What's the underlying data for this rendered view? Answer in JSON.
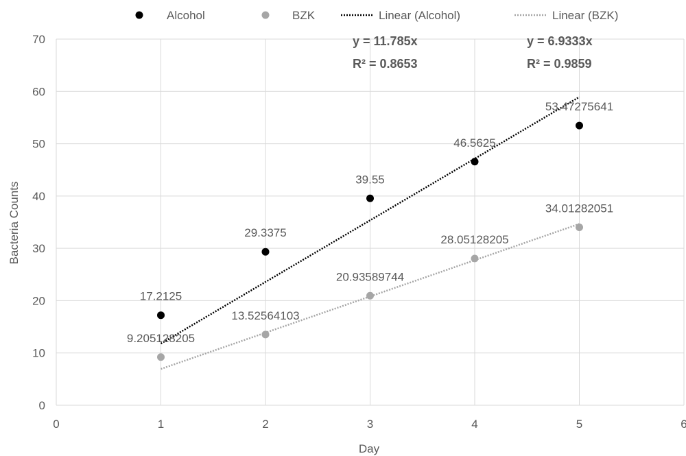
{
  "chart_data": {
    "type": "scatter",
    "title": "",
    "xlabel": "Day",
    "ylabel": "Bacteria Counts",
    "xlim": [
      0,
      6
    ],
    "ylim": [
      0,
      70
    ],
    "x_ticks": [
      0,
      1,
      2,
      3,
      4,
      5,
      6
    ],
    "y_ticks": [
      0,
      10,
      20,
      30,
      40,
      50,
      60,
      70
    ],
    "grid": true,
    "legend_position": "top",
    "series": [
      {
        "name": "Alcohol",
        "color": "#000000",
        "x": [
          1,
          2,
          3,
          4,
          5
        ],
        "y": [
          17.2125,
          29.3375,
          39.55,
          46.5625,
          53.47275641
        ],
        "labels": [
          "17.2125",
          "29.3375",
          "39.55",
          "46.5625",
          "53.47275641"
        ]
      },
      {
        "name": "BZK",
        "color": "#a6a6a6",
        "x": [
          1,
          2,
          3,
          4,
          5
        ],
        "y": [
          9.205128205,
          13.52564103,
          20.93589744,
          28.05128205,
          34.01282051
        ],
        "labels": [
          "9.205128205",
          "13.52564103",
          "20.93589744",
          "28.05128205",
          "34.01282051"
        ]
      }
    ],
    "trendlines": [
      {
        "name": "Linear (Alcohol)",
        "color": "#000000",
        "slope": 11.785,
        "x_range": [
          1,
          5
        ],
        "equation": "y = 11.785x",
        "r2": "R² = 0.8653"
      },
      {
        "name": "Linear (BZK)",
        "color": "#a6a6a6",
        "slope": 6.9333,
        "x_range": [
          1,
          5
        ],
        "equation": "y = 6.9333x",
        "r2": "R² = 0.9859"
      }
    ]
  }
}
